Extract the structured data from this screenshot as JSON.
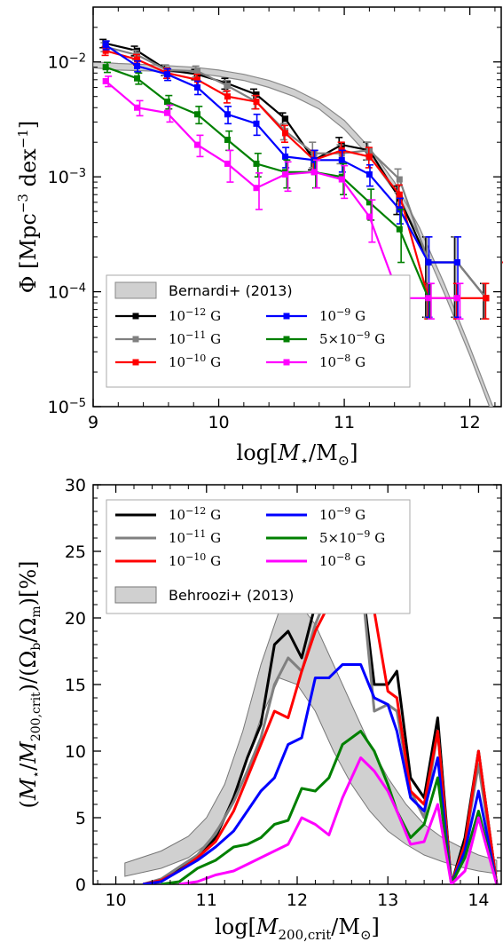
{
  "chart_data": [
    {
      "type": "line",
      "xlabel": "log[M⋆/M⊙]",
      "ylabel": "Φ [Mpc⁻³ dex⁻¹]",
      "xlim": [
        9.0,
        12.25
      ],
      "ylim": [
        1e-05,
        0.03
      ],
      "yscale": "log",
      "x_ticks": [
        "9",
        "10",
        "11",
        "12"
      ],
      "y_ticks": [
        "10⁻⁵",
        "10⁻⁴",
        "10⁻³",
        "10⁻²"
      ],
      "legend_placement": "lower-left",
      "band": {
        "name": "Bernardi+ (2013)",
        "x": [
          9.0,
          9.2,
          9.5,
          9.8,
          10.0,
          10.2,
          10.4,
          10.6,
          10.8,
          11.0,
          11.2,
          11.4,
          11.6,
          11.8,
          12.0,
          12.2
        ],
        "lower": [
          0.0089,
          0.0085,
          0.0083,
          0.008,
          0.0075,
          0.0069,
          0.006,
          0.005,
          0.0039,
          0.0026,
          0.0015,
          0.00075,
          0.0003,
          9.5e-05,
          2.8e-05,
          7.5e-06
        ],
        "upper": [
          0.01,
          0.0097,
          0.0094,
          0.009,
          0.0085,
          0.0078,
          0.0069,
          0.0058,
          0.0045,
          0.0031,
          0.0018,
          0.0009,
          0.00036,
          0.000115,
          3.3e-05,
          9e-06
        ]
      },
      "series": [
        {
          "name": "10⁻¹² G",
          "color": "#000000",
          "x": [
            9.1,
            9.35,
            9.59,
            9.83,
            10.07,
            10.3,
            10.53,
            10.76,
            10.98,
            11.2,
            11.44,
            11.67,
            11.9,
            12.13
          ],
          "y": [
            0.0145,
            0.0125,
            0.0085,
            0.0078,
            0.0065,
            0.0052,
            0.0032,
            0.0014,
            0.0019,
            0.0017,
            0.00065,
            0.00018,
            0.00018,
            8.8e-05
          ],
          "err": [
            0.0012,
            0.0012,
            0.0009,
            0.0008,
            0.0007,
            0.0006,
            0.0004,
            0.00025,
            0.0003,
            0.0003,
            0.00018,
            0.00012,
            0.00012,
            3e-05
          ]
        },
        {
          "name": "10⁻¹¹ G",
          "color": "#808080",
          "x": [
            9.1,
            9.35,
            9.59,
            9.83,
            10.07,
            10.3,
            10.53,
            10.76,
            10.98,
            11.2,
            11.44,
            11.67,
            11.9,
            12.13
          ],
          "y": [
            0.0135,
            0.0115,
            0.0085,
            0.0083,
            0.0062,
            0.0045,
            0.0025,
            0.0016,
            0.0016,
            0.0017,
            0.00095,
            0.00018,
            0.00018,
            8.8e-05
          ],
          "err": [
            0.0012,
            0.0011,
            0.0009,
            0.0009,
            0.0007,
            0.0006,
            0.0004,
            0.0004,
            0.0003,
            0.0003,
            0.00022,
            0.00012,
            0.00012,
            3e-05
          ]
        },
        {
          "name": "10⁻¹⁰ G",
          "color": "#ff0000",
          "x": [
            9.1,
            9.35,
            9.59,
            9.83,
            10.07,
            10.3,
            10.53,
            10.76,
            10.98,
            11.2,
            11.44,
            11.67,
            11.9,
            12.13
          ],
          "y": [
            0.0125,
            0.0105,
            0.008,
            0.007,
            0.005,
            0.0045,
            0.0024,
            0.0014,
            0.0017,
            0.0015,
            0.0007,
            8.8e-05,
            8.8e-05,
            8.8e-05
          ],
          "err": [
            0.0011,
            0.0011,
            0.0008,
            0.0008,
            0.0006,
            0.0006,
            0.0004,
            0.0003,
            0.0003,
            0.0003,
            0.00015,
            3e-05,
            3e-05,
            3e-05
          ]
        },
        {
          "name": "10⁻⁹ G",
          "color": "#0000ff",
          "x": [
            9.1,
            9.35,
            9.59,
            9.83,
            10.07,
            10.3,
            10.53,
            10.76,
            10.98,
            11.2,
            11.44,
            11.67,
            11.9
          ],
          "y": [
            0.014,
            0.0092,
            0.0078,
            0.006,
            0.0035,
            0.0029,
            0.0015,
            0.0014,
            0.0014,
            0.00105,
            0.00052,
            0.00018,
            0.00018
          ],
          "err": [
            0.0012,
            0.001,
            0.0009,
            0.0008,
            0.0006,
            0.0006,
            0.0003,
            0.0003,
            0.0003,
            0.00022,
            0.00013,
            0.00012,
            0.00012
          ]
        },
        {
          "name": "5×10⁻⁹ G",
          "color": "#008000",
          "x": [
            9.1,
            9.35,
            9.59,
            9.83,
            10.07,
            10.3,
            10.53,
            10.76,
            10.98,
            11.2,
            11.44,
            11.67
          ],
          "y": [
            0.009,
            0.0072,
            0.0045,
            0.0035,
            0.0021,
            0.0013,
            0.0011,
            0.0011,
            0.001,
            0.0006,
            0.00035,
            8.8e-05
          ],
          "err": [
            0.0009,
            0.0008,
            0.0006,
            0.0006,
            0.0004,
            0.0003,
            0.0003,
            0.0003,
            0.0003,
            0.00018,
            0.00017,
            3e-05
          ]
        },
        {
          "name": "10⁻⁸ G",
          "color": "#ff00ff",
          "x": [
            9.1,
            9.35,
            9.59,
            9.83,
            10.07,
            10.3,
            10.53,
            10.76,
            10.98,
            11.2,
            11.44,
            11.67,
            11.9
          ],
          "y": [
            0.0068,
            0.004,
            0.0036,
            0.0019,
            0.0013,
            0.0008,
            0.00105,
            0.0011,
            0.00095,
            0.00045,
            8.8e-05,
            8.8e-05,
            8.8e-05
          ],
          "err": [
            0.0007,
            0.0006,
            0.0006,
            0.0004,
            0.0004,
            0.00028,
            0.0003,
            0.0003,
            0.0003,
            0.00018,
            3e-05,
            3e-05,
            3e-05
          ]
        }
      ],
      "marker": {
        "name": "10⁻¹⁰ G",
        "color": "#ff0000",
        "x": 12.3,
        "y": 0.00018
      }
    },
    {
      "type": "line",
      "xlabel": "log[M200,crit/M⊙]",
      "ylabel": "(M⋆/M200,crit)/(Ωb/Ωm)[%]",
      "xlim": [
        9.75,
        14.25
      ],
      "ylim": [
        0,
        30
      ],
      "x_ticks": [
        "10",
        "11",
        "12",
        "13",
        "14"
      ],
      "y_ticks": [
        "0",
        "5",
        "10",
        "15",
        "20",
        "25",
        "30"
      ],
      "legend_placement": "top-center",
      "band": {
        "name": "Behroozi+ (2013)",
        "x": [
          10.1,
          10.5,
          10.8,
          11.0,
          11.2,
          11.4,
          11.6,
          11.8,
          12.0,
          12.2,
          12.4,
          12.6,
          12.8,
          13.0,
          13.2,
          13.4,
          13.6,
          13.8,
          14.0,
          14.2
        ],
        "lower": [
          0.6,
          1.2,
          2.0,
          3.0,
          5.0,
          8.5,
          12.5,
          15.5,
          15.0,
          13.0,
          10.0,
          7.5,
          5.5,
          4.0,
          3.0,
          2.2,
          1.7,
          1.3,
          1.0,
          0.8
        ],
        "upper": [
          1.6,
          2.5,
          3.6,
          5.0,
          7.5,
          11.5,
          16.5,
          20.5,
          21.3,
          19.5,
          16.5,
          13.5,
          10.5,
          8.0,
          6.0,
          4.5,
          3.5,
          2.8,
          2.2,
          1.8
        ]
      },
      "series": [
        {
          "name": "10⁻¹² G",
          "color": "#000000",
          "x": [
            10.3,
            10.5,
            10.7,
            10.9,
            11.1,
            11.3,
            11.45,
            11.6,
            11.75,
            11.9,
            12.05,
            12.2,
            12.35,
            12.5,
            12.7,
            12.85,
            13.0,
            13.1,
            13.25,
            13.4,
            13.55,
            13.7,
            13.85,
            14.0,
            14.2
          ],
          "y": [
            0,
            0.3,
            1.2,
            2.0,
            3.5,
            6.5,
            9.5,
            12.0,
            18.0,
            19.0,
            17.0,
            21.0,
            22.5,
            23.0,
            23.5,
            15.0,
            15.0,
            16.0,
            8.0,
            6.5,
            12.5,
            0,
            3.5,
            10.0,
            0
          ]
        },
        {
          "name": "10⁻¹¹ G",
          "color": "#808080",
          "x": [
            10.3,
            10.5,
            10.7,
            10.9,
            11.1,
            11.3,
            11.45,
            11.6,
            11.75,
            11.9,
            12.05,
            12.2,
            12.35,
            12.5,
            12.7,
            12.85,
            13.0,
            13.1,
            13.25,
            13.4,
            13.55,
            13.7,
            13.85,
            14.0,
            14.2
          ],
          "y": [
            0,
            0.4,
            1.3,
            2.2,
            3.8,
            6.2,
            8.5,
            11.0,
            15.0,
            17.0,
            16.0,
            19.5,
            22.0,
            22.0,
            23.5,
            13.0,
            13.5,
            13.0,
            7.0,
            5.0,
            11.5,
            0,
            3.0,
            9.0,
            0
          ]
        },
        {
          "name": "10⁻¹⁰ G",
          "color": "#ff0000",
          "x": [
            10.3,
            10.5,
            10.7,
            10.9,
            11.1,
            11.3,
            11.45,
            11.6,
            11.75,
            11.9,
            12.05,
            12.2,
            12.35,
            12.5,
            12.7,
            12.85,
            13.0,
            13.1,
            13.25,
            13.4,
            13.55,
            13.7,
            13.85,
            14.0,
            14.2
          ],
          "y": [
            0,
            0.3,
            1.0,
            2.0,
            3.2,
            5.5,
            8.0,
            10.5,
            13.0,
            12.5,
            16.0,
            19.0,
            21.0,
            22.5,
            20.5,
            20.5,
            14.5,
            14.0,
            7.0,
            6.0,
            11.5,
            0,
            3.0,
            10.0,
            0
          ]
        },
        {
          "name": "10⁻⁹ G",
          "color": "#0000ff",
          "x": [
            10.3,
            10.5,
            10.7,
            10.9,
            11.1,
            11.3,
            11.45,
            11.6,
            11.75,
            11.9,
            12.05,
            12.2,
            12.35,
            12.5,
            12.7,
            12.85,
            13.0,
            13.1,
            13.25,
            13.4,
            13.55,
            13.7,
            13.85,
            14.0,
            14.2
          ],
          "y": [
            0,
            0.2,
            1.0,
            1.8,
            2.8,
            4.0,
            5.5,
            7.0,
            8.0,
            10.5,
            11.0,
            15.5,
            15.5,
            16.5,
            16.5,
            14.0,
            13.5,
            11.5,
            6.5,
            5.5,
            9.5,
            0,
            2.5,
            7.0,
            0
          ]
        },
        {
          "name": "5×10⁻⁹ G",
          "color": "#008000",
          "x": [
            10.5,
            10.7,
            10.9,
            11.1,
            11.3,
            11.45,
            11.6,
            11.75,
            11.9,
            12.05,
            12.2,
            12.35,
            12.5,
            12.7,
            12.85,
            13.0,
            13.1,
            13.25,
            13.4,
            13.55,
            13.7,
            13.85,
            14.0,
            14.2
          ],
          "y": [
            0,
            0.2,
            1.2,
            1.8,
            2.8,
            3.0,
            3.5,
            4.5,
            4.8,
            7.2,
            7.0,
            8.0,
            10.5,
            11.5,
            10.0,
            7.5,
            5.5,
            3.5,
            4.5,
            8.0,
            0,
            2.0,
            5.5,
            0
          ]
        },
        {
          "name": "10⁻⁸ G",
          "color": "#ff00ff",
          "x": [
            10.7,
            10.9,
            11.1,
            11.3,
            11.45,
            11.6,
            11.75,
            11.9,
            12.05,
            12.2,
            12.35,
            12.5,
            12.7,
            12.85,
            13.0,
            13.1,
            13.25,
            13.4,
            13.55,
            13.7,
            13.85,
            14.0,
            14.2
          ],
          "y": [
            0,
            0.2,
            0.7,
            1.0,
            1.5,
            2.0,
            2.5,
            3.0,
            5.0,
            4.5,
            3.7,
            6.5,
            9.5,
            8.5,
            7.0,
            5.5,
            3.0,
            3.2,
            6.0,
            0,
            1.0,
            5.0,
            0
          ]
        }
      ]
    }
  ]
}
